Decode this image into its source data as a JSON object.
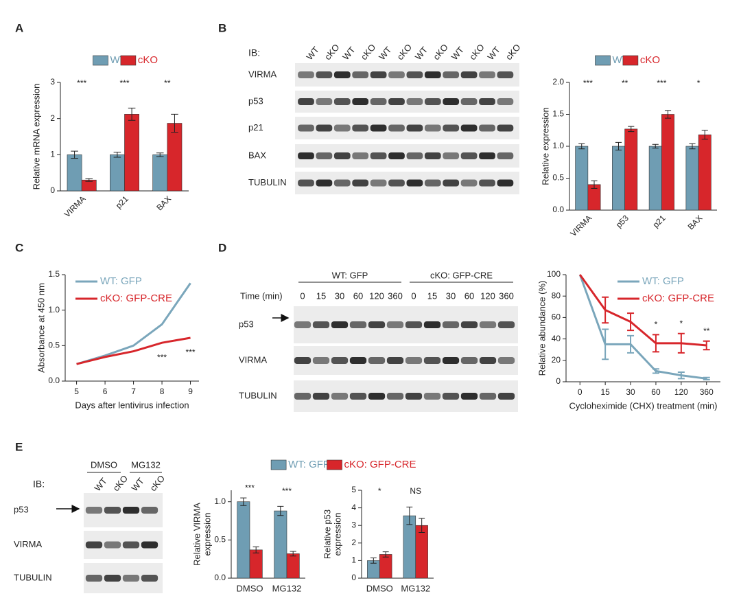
{
  "panel_labels": [
    "A",
    "B",
    "C",
    "D",
    "E"
  ],
  "blots": [
    {
      "ib": "IB:",
      "lanes": [
        "WT",
        "cKO",
        "WT",
        "cKO",
        "WT",
        "cKO",
        "WT",
        "cKO",
        "WT",
        "cKO",
        "WT",
        "cKO"
      ],
      "rows": [
        "VIRMA",
        "p53",
        "p21",
        "BAX",
        "TUBULIN"
      ]
    },
    {
      "groups": [
        "WT: GFP",
        "cKO: GFP-CRE"
      ],
      "time_label": "Time (min)",
      "lanes": [
        0,
        15,
        30,
        60,
        120,
        360,
        0,
        15,
        30,
        60,
        120,
        360
      ],
      "rows": [
        "p53",
        "VIRMA",
        "TUBULIN"
      ]
    },
    {
      "ib": "IB:",
      "groups": [
        "DMSO",
        "MG132"
      ],
      "lanes": [
        "WT",
        "cKO",
        "WT",
        "cKO"
      ],
      "rows": [
        "p53",
        "VIRMA",
        "TUBULIN"
      ]
    }
  ],
  "chart_data": [
    {
      "type": "bar",
      "categories": [
        "VIRMA",
        "p21",
        "BAX"
      ],
      "y_label": [
        "Relative mRNA expression"
      ],
      "series": [
        {
          "name": "WT",
          "color": "#6f9db3",
          "values": [
            1.0,
            1.0,
            1.0
          ],
          "errors": [
            0.1,
            0.07,
            0.05
          ]
        },
        {
          "name": "cKO",
          "color": "#d7262b",
          "values": [
            0.3,
            2.12,
            1.87
          ],
          "errors": [
            0.04,
            0.17,
            0.25
          ]
        }
      ],
      "annotations": [
        "***",
        "***",
        "**"
      ],
      "ylim": [
        0,
        3
      ],
      "yticks": [
        0,
        1,
        2,
        3
      ],
      "legend": "top"
    },
    {
      "type": "bar",
      "categories": [
        "VIRMA",
        "p53",
        "p21",
        "BAX"
      ],
      "y_label": [
        "Relative expression"
      ],
      "series": [
        {
          "name": "WT",
          "color": "#6f9db3",
          "values": [
            1.0,
            1.0,
            1.0,
            1.0
          ],
          "errors": [
            0.04,
            0.06,
            0.03,
            0.04
          ]
        },
        {
          "name": "cKO",
          "color": "#d7262b",
          "values": [
            0.4,
            1.27,
            1.5,
            1.18
          ],
          "errors": [
            0.06,
            0.04,
            0.06,
            0.07
          ]
        }
      ],
      "annotations": [
        "***",
        "**",
        "***",
        "*"
      ],
      "ylim": [
        0,
        2.0
      ],
      "yticks": [
        {
          "value": 0,
          "label": "0.0"
        },
        {
          "value": 0.5,
          "label": "0.5"
        },
        {
          "value": 1.0,
          "label": "1.0"
        },
        {
          "value": 1.5,
          "label": "1.5"
        },
        {
          "value": 2.0,
          "label": "2.0"
        }
      ],
      "legend": "top"
    },
    {
      "type": "line",
      "x": [
        5,
        6,
        7,
        8,
        9
      ],
      "x_label": "Days after lentivirus infection",
      "y_label": [
        "Absorbance at 450 nm"
      ],
      "series": [
        {
          "name": "WT: GFP",
          "color": "#7aa6bb",
          "values": [
            0.24,
            0.36,
            0.5,
            0.8,
            1.38
          ]
        },
        {
          "name": "cKO: GFP-CRE",
          "color": "#d7262b",
          "values": [
            0.24,
            0.34,
            0.42,
            0.54,
            0.61
          ]
        }
      ],
      "annotations": [
        null,
        null,
        null,
        "***",
        "***"
      ],
      "xlim": [
        4.6,
        9.3
      ],
      "xticks": [
        5,
        6,
        7,
        8,
        9
      ],
      "ylim": [
        0,
        1.5
      ],
      "yticks": [
        {
          "value": 0,
          "label": "0.0"
        },
        {
          "value": 0.5,
          "label": "0.5"
        },
        {
          "value": 1.0,
          "label": "1.0"
        },
        {
          "value": 1.5,
          "label": "1.5"
        }
      ],
      "legend": "upper left"
    },
    {
      "type": "line",
      "categories": [
        "0",
        "15",
        "30",
        "60",
        "120",
        "360"
      ],
      "x_label": "Cycloheximide (CHX) treatment (min)",
      "y_label": [
        "Relative abundance (%)"
      ],
      "series": [
        {
          "name": "WT: GFP",
          "color": "#7aa6bb",
          "values": [
            100,
            35,
            35,
            10,
            6,
            3
          ],
          "errors": [
            null,
            14,
            8,
            2,
            3,
            1
          ]
        },
        {
          "name": "cKO: GFP-CRE",
          "color": "#d7262b",
          "values": [
            100,
            67,
            56,
            36,
            36,
            34
          ],
          "errors": [
            null,
            12,
            8,
            8,
            9,
            4
          ]
        }
      ],
      "annotations": [
        null,
        null,
        null,
        "*",
        "*",
        "**"
      ],
      "ylim": [
        0,
        100
      ],
      "yticks": [
        0,
        20,
        40,
        60,
        80,
        100
      ],
      "legend": "upper right"
    },
    {
      "type": "bar",
      "categories": [
        "DMSO",
        "MG132"
      ],
      "y_label": [
        "Relative VIRMA",
        "expression"
      ],
      "series": [
        {
          "name": "WT: GFP",
          "color": "#6f9db3",
          "values": [
            1.0,
            0.88
          ],
          "errors": [
            0.05,
            0.06
          ]
        },
        {
          "name": "cKO: GFP-CRE",
          "color": "#d7262b",
          "values": [
            0.37,
            0.32
          ],
          "errors": [
            0.04,
            0.03
          ]
        }
      ],
      "annotations": [
        "***",
        "***"
      ],
      "ylim": [
        0,
        1.15
      ],
      "yticks": [
        {
          "value": 0,
          "label": "0.0"
        },
        {
          "value": 0.5,
          "label": "0.5"
        },
        {
          "value": 1.0,
          "label": "1.0"
        }
      ],
      "legend": "top"
    },
    {
      "type": "bar",
      "categories": [
        "DMSO",
        "MG132"
      ],
      "y_label": [
        "Relative p53",
        "expression"
      ],
      "series": [
        {
          "name": "WT: GFP",
          "color": "#6f9db3",
          "values": [
            1.0,
            3.55
          ],
          "errors": [
            0.15,
            0.5
          ]
        },
        {
          "name": "cKO: GFP-CRE",
          "color": "#d7262b",
          "values": [
            1.35,
            3.0
          ],
          "errors": [
            0.15,
            0.4
          ]
        }
      ],
      "annotations": [
        "*",
        "NS"
      ],
      "ylim": [
        0,
        5
      ],
      "yticks": [
        0,
        1,
        2,
        3,
        4,
        5
      ],
      "legend": "none"
    }
  ]
}
